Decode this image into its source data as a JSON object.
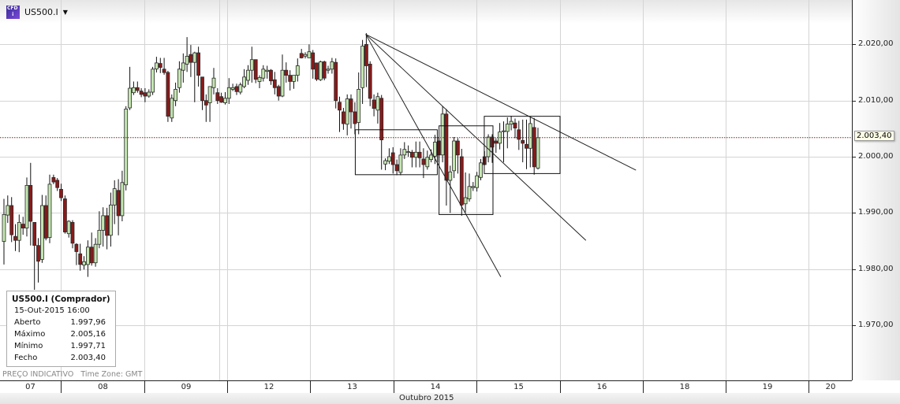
{
  "header": {
    "symbol": "US500.I",
    "logo_text": "CFD i",
    "dropdown_icon": "caret-down-icon"
  },
  "info_box": {
    "title": "US500.I (Comprador)",
    "datetime": "15-Out-2015 16:00",
    "rows": [
      {
        "label": "Aberto",
        "value": "1.997,96"
      },
      {
        "label": "Máximo",
        "value": "2.005,16"
      },
      {
        "label": "Mínimo",
        "value": "1.997,71"
      },
      {
        "label": "Fecho",
        "value": "2.003,40"
      }
    ]
  },
  "footer": {
    "indicative": "PREÇO INDICATIVO",
    "timezone": "Time Zone: GMT",
    "month": "Outubro 2015"
  },
  "colors": {
    "up": "#c4e6b0",
    "down": "#8b1a1a",
    "outline": "#2a2a2a",
    "grid": "#d4d4d4",
    "price_line": "#8b1a1a"
  },
  "chart_data": {
    "type": "candlestick",
    "interval": "1h",
    "ylim": [
      1960,
      2028
    ],
    "y_ticks": [
      "2.020,00",
      "2.010,00",
      "2.000,00",
      "1.990,00",
      "1.980,00",
      "1.970,00"
    ],
    "y_tick_values": [
      2020,
      2010,
      2000,
      1990,
      1980,
      1970
    ],
    "x_ticks": [
      "07",
      "08",
      "09",
      "12",
      "13",
      "14",
      "15",
      "16",
      "18",
      "19",
      "20"
    ],
    "current_price": 2003.4,
    "current_price_label": "2.003,40",
    "last_candle_time": "15-Out-2015 16:00",
    "grid": true,
    "candles_ohlc": [
      [
        1984.9,
        1992.5,
        1980.8,
        1989.7
      ],
      [
        1989.6,
        1993.1,
        1988.2,
        1991.3
      ],
      [
        1991.3,
        1992.8,
        1984.8,
        1986.1
      ],
      [
        1985.8,
        1988.0,
        1983.2,
        1985.1
      ],
      [
        1985.1,
        1989.7,
        1983.0,
        1988.3
      ],
      [
        1988.0,
        1989.3,
        1986.1,
        1987.3
      ],
      [
        1987.3,
        1996.3,
        1985.8,
        1994.9
      ],
      [
        1994.9,
        1998.9,
        1984.2,
        1988.5
      ],
      [
        1988.3,
        1988.3,
        1976.3,
        1984.2
      ],
      [
        1984.2,
        1985.5,
        1977.6,
        1981.4
      ],
      [
        1981.7,
        1993.2,
        1981.1,
        1991.3
      ],
      [
        1991.3,
        1993.1,
        1985.1,
        1985.5
      ],
      [
        1985.6,
        1996.8,
        1984.6,
        1995.1
      ],
      [
        1996.3,
        1996.8,
        1995.1,
        1995.5
      ],
      [
        1995.8,
        1996.2,
        1993.9,
        1994.5
      ],
      [
        1994.2,
        1995.2,
        1992.1,
        1992.7
      ],
      [
        1992.5,
        1993.1,
        1986.3,
        1986.6
      ],
      [
        1986.3,
        1988.7,
        1985.6,
        1988.5
      ],
      [
        1988.3,
        1988.7,
        1983.7,
        1984.6
      ],
      [
        1984.4,
        1984.6,
        1980.7,
        1983.1
      ],
      [
        1982.7,
        1984.5,
        1979.7,
        1980.8
      ],
      [
        1980.7,
        1982.3,
        1979.9,
        1981.3
      ],
      [
        1980.8,
        1985.1,
        1978.6,
        1983.9
      ],
      [
        1983.9,
        1986.5,
        1980.6,
        1981.1
      ],
      [
        1981.1,
        1985.5,
        1980.4,
        1984.4
      ],
      [
        1984.4,
        1990.3,
        1983.7,
        1986.9
      ],
      [
        1986.9,
        1991.0,
        1984.0,
        1989.5
      ],
      [
        1989.5,
        1990.9,
        1983.5,
        1986.0
      ],
      [
        1986.0,
        1993.6,
        1984.0,
        1991.4
      ],
      [
        1991.4,
        1995.8,
        1988.0,
        1994.3
      ],
      [
        1994.0,
        1996.0,
        1986.0,
        1989.5
      ],
      [
        1989.5,
        1997.5,
        1988.5,
        1995.4
      ],
      [
        1995.0,
        2009.0,
        1994.0,
        2008.5
      ],
      [
        2008.7,
        2016.0,
        2008.3,
        2012.2
      ],
      [
        2011.4,
        2013.4,
        2011.0,
        2012.3
      ],
      [
        2012.3,
        2013.4,
        2011.4,
        2011.8
      ],
      [
        2011.7,
        2012.2,
        2010.6,
        2011.1
      ],
      [
        2011.4,
        2012.2,
        2009.7,
        2010.8
      ],
      [
        2010.8,
        2012.0,
        2010.5,
        2011.5
      ],
      [
        2011.5,
        2016.0,
        2011.0,
        2015.6
      ],
      [
        2015.6,
        2017.8,
        2015.0,
        2016.7
      ],
      [
        2016.6,
        2017.6,
        2014.9,
        2015.9
      ],
      [
        2015.6,
        2017.6,
        2014.6,
        2015.0
      ],
      [
        2015.0,
        2015.3,
        2006.2,
        2007.2
      ],
      [
        2006.9,
        2011.1,
        2006.2,
        2010.4
      ],
      [
        2010.0,
        2013.2,
        2009.0,
        2012.0
      ],
      [
        2012.3,
        2017.0,
        2011.4,
        2015.6
      ],
      [
        2015.4,
        2018.4,
        2013.2,
        2016.7
      ],
      [
        2016.5,
        2021.3,
        2015.1,
        2017.9
      ],
      [
        2018.2,
        2019.9,
        2014.2,
        2016.8
      ],
      [
        2016.8,
        2018.7,
        2009.7,
        2018.5
      ],
      [
        2018.5,
        2019.6,
        2012.5,
        2014.5
      ],
      [
        2014.2,
        2014.2,
        2008.3,
        2010.0
      ],
      [
        2010.0,
        2011.1,
        2006.2,
        2009.2
      ],
      [
        2009.6,
        2012.5,
        2006.2,
        2012.5
      ],
      [
        2012.3,
        2015.8,
        2011.1,
        2014.0
      ],
      [
        2011.4,
        2012.2,
        2009.4,
        2010.0
      ],
      [
        2010.7,
        2011.4,
        2009.6,
        2009.7
      ],
      [
        2009.6,
        2011.5,
        2009.3,
        2010.4
      ],
      [
        2010.4,
        2014.0,
        2009.4,
        2012.3
      ],
      [
        2012.0,
        2013.0,
        2011.7,
        2012.3
      ],
      [
        2012.5,
        2013.0,
        2011.0,
        2011.6
      ],
      [
        2011.5,
        2013.2,
        2011.1,
        2012.8
      ],
      [
        2012.5,
        2015.6,
        2012.2,
        2014.2
      ],
      [
        2013.6,
        2016.3,
        2012.8,
        2015.4
      ],
      [
        2015.4,
        2019.6,
        2013.2,
        2017.3
      ],
      [
        2017.3,
        2017.3,
        2013.1,
        2013.8
      ],
      [
        2013.4,
        2014.5,
        2012.2,
        2014.1
      ],
      [
        2014.0,
        2016.3,
        2013.4,
        2015.6
      ],
      [
        2015.2,
        2016.2,
        2013.9,
        2015.4
      ],
      [
        2015.4,
        2015.6,
        2012.8,
        2013.5
      ],
      [
        2013.7,
        2015.1,
        2011.1,
        2012.3
      ],
      [
        2012.5,
        2012.8,
        2010.0,
        2010.8
      ],
      [
        2010.8,
        2018.2,
        2010.6,
        2015.4
      ],
      [
        2015.4,
        2016.8,
        2013.2,
        2014.5
      ],
      [
        2014.5,
        2015.4,
        2011.8,
        2013.4
      ],
      [
        2013.4,
        2014.5,
        2012.1,
        2014.5
      ],
      [
        2014.5,
        2017.5,
        2013.4,
        2016.2
      ],
      [
        2018.4,
        2019.2,
        2017.5,
        2017.6
      ],
      [
        2017.9,
        2018.6,
        2017.5,
        2018.2
      ],
      [
        2017.6,
        2020.0,
        2017.6,
        2018.7
      ],
      [
        2018.5,
        2019.0,
        2013.9,
        2015.6
      ],
      [
        2016.7,
        2016.7,
        2013.5,
        2013.8
      ],
      [
        2013.7,
        2017.1,
        2013.5,
        2016.9
      ],
      [
        2016.9,
        2017.1,
        2013.6,
        2014.0
      ],
      [
        2015.4,
        2016.2,
        2014.8,
        2015.6
      ],
      [
        2015.6,
        2017.6,
        2014.8,
        2016.9
      ],
      [
        2016.8,
        2017.5,
        2008.6,
        2010.0
      ],
      [
        2009.7,
        2010.7,
        2004.4,
        2008.3
      ],
      [
        2008.0,
        2008.7,
        2004.8,
        2005.9
      ],
      [
        2005.8,
        2011.1,
        2003.8,
        2010.3
      ],
      [
        2010.3,
        2011.1,
        2005.0,
        2008.0
      ],
      [
        2008.0,
        2009.7,
        2004.0,
        2005.9
      ],
      [
        2006.1,
        2015.0,
        2004.0,
        2012.0
      ],
      [
        2012.3,
        2020.8,
        2009.4,
        2019.7
      ],
      [
        2020.0,
        2022.0,
        2012.4,
        2016.2
      ],
      [
        2016.5,
        2017.0,
        2009.0,
        2010.4
      ],
      [
        2010.1,
        2011.1,
        2007.2,
        2008.6
      ],
      [
        2008.3,
        2011.4,
        2005.9,
        2010.7
      ],
      [
        2010.4,
        2011.0,
        1997.7,
        2003.0
      ],
      [
        1998.7,
        1999.7,
        1997.6,
        1999.3
      ],
      [
        1999.2,
        2001.5,
        1998.7,
        2000.0
      ],
      [
        2000.7,
        2001.7,
        1997.0,
        1998.6
      ],
      [
        1998.6,
        1999.5,
        1996.7,
        1997.5
      ],
      [
        1997.2,
        2001.5,
        1996.7,
        2000.3
      ],
      [
        2000.3,
        2002.6,
        1999.6,
        2001.3
      ],
      [
        2000.8,
        2002.0,
        2000.0,
        2000.9
      ],
      [
        2000.8,
        2001.2,
        1998.1,
        1999.9
      ],
      [
        1999.9,
        2002.7,
        1998.1,
        2000.8
      ],
      [
        2000.8,
        2002.7,
        1998.1,
        1999.8
      ],
      [
        1999.6,
        2001.5,
        1996.2,
        1998.6
      ],
      [
        1998.2,
        2001.1,
        1997.7,
        1999.9
      ],
      [
        1999.5,
        2001.3,
        1999.0,
        2000.3
      ],
      [
        2000.1,
        2003.9,
        1998.7,
        2002.6
      ],
      [
        2002.8,
        2003.5,
        1999.0,
        2000.3
      ],
      [
        2000.3,
        2009.0,
        1999.0,
        2007.6
      ],
      [
        2007.6,
        2008.5,
        1991.3,
        1995.8
      ],
      [
        1995.8,
        1998.4,
        1990.0,
        1997.3
      ],
      [
        1997.5,
        2003.5,
        1996.2,
        2002.8
      ],
      [
        2002.8,
        2003.3,
        1997.0,
        2000.3
      ],
      [
        2000.0,
        2001.4,
        1989.5,
        1991.4
      ],
      [
        1991.6,
        1997.2,
        1990.1,
        1992.7
      ],
      [
        1992.5,
        1997.0,
        1992.0,
        1994.7
      ],
      [
        1994.5,
        1995.5,
        1993.9,
        1994.7
      ],
      [
        1994.5,
        1997.3,
        1993.8,
        1996.6
      ],
      [
        1996.3,
        1999.6,
        1995.8,
        1998.9
      ],
      [
        2000.0,
        2001.0,
        1998.5,
        1998.6
      ],
      [
        2000.0,
        2004.0,
        1999.0,
        2003.5
      ],
      [
        2003.5,
        2004.0,
        1998.9,
        2001.7
      ],
      [
        2002.8,
        2003.3,
        2000.7,
        2002.4
      ],
      [
        2002.4,
        2006.0,
        2001.3,
        2004.4
      ],
      [
        2004.5,
        2006.3,
        1999.0,
        2004.6
      ],
      [
        2004.5,
        2007.0,
        2001.5,
        2005.8
      ],
      [
        2005.8,
        2007.3,
        2004.7,
        2006.3
      ],
      [
        2006.0,
        2006.8,
        2003.3,
        2005.1
      ],
      [
        2004.8,
        2006.4,
        2001.2,
        2003.1
      ],
      [
        2002.9,
        2006.6,
        1999.0,
        2002.4
      ],
      [
        2002.2,
        2006.6,
        1997.8,
        2001.5
      ],
      [
        2001.5,
        2007.2,
        1998.1,
        2005.9
      ],
      [
        2005.2,
        2006.9,
        1996.8,
        1998.2
      ],
      [
        1997.96,
        2005.16,
        1997.71,
        2003.4
      ]
    ],
    "trendlines": [
      {
        "from": {
          "time": "13 16:00",
          "price": 2021.8
        },
        "to": {
          "time": "15 07:00",
          "price": 1978.6
        }
      },
      {
        "from": {
          "time": "13 16:00",
          "price": 2021.8
        },
        "to": {
          "time": "16 07:30",
          "price": 1985.1
        }
      },
      {
        "from": {
          "time": "13 16:00",
          "price": 2021.8
        },
        "to": {
          "time": "16 22:00",
          "price": 1997.6
        }
      }
    ],
    "rectangles": [
      {
        "from": {
          "time": "13 13:00",
          "price": 2004.8
        },
        "to": {
          "time": "14 12:40",
          "price": 1996.8
        }
      },
      {
        "from": {
          "time": "14 13:10",
          "price": 2005.5
        },
        "to": {
          "time": "15 04:45",
          "price": 1989.7
        }
      },
      {
        "from": {
          "time": "15 02:15",
          "price": 2007.2
        },
        "to": {
          "time": "16 00:00",
          "price": 1997.0
        }
      }
    ]
  }
}
